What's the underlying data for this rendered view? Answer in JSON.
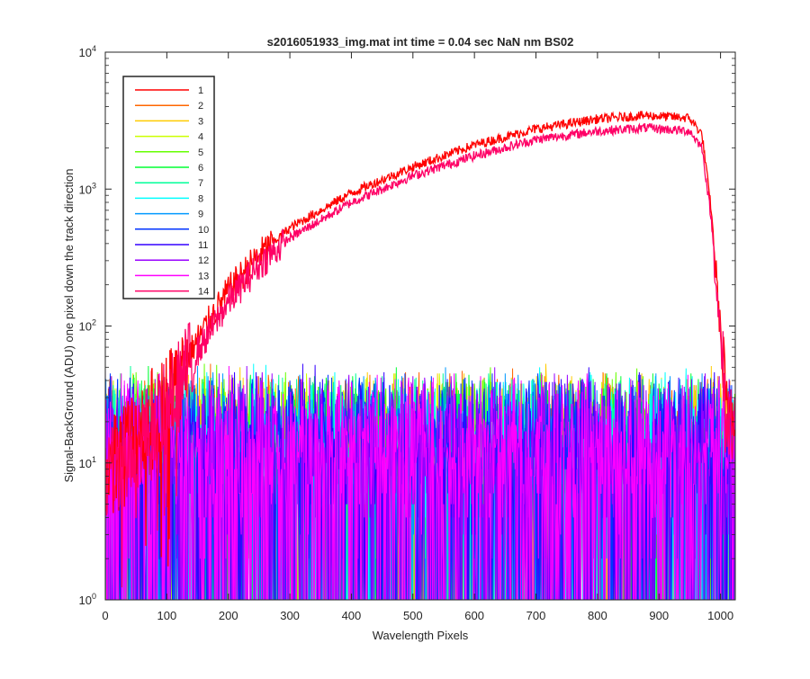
{
  "chart_data": {
    "type": "line",
    "title": "s2016051933_img.mat int time = 0.04 sec  NaN nm BS02",
    "xlabel": "Wavelength Pixels",
    "ylabel": "Signal-BackGround (ADU) one pixel down the track direction",
    "xlim": [
      0,
      1024
    ],
    "ylim": [
      1,
      10000
    ],
    "yscale": "log",
    "grid": false,
    "legend_position": "top-left",
    "x_ticks": [
      0,
      100,
      200,
      300,
      400,
      500,
      600,
      700,
      800,
      900,
      1000
    ],
    "y_ticks": [
      {
        "value": 1,
        "base": "10",
        "exp": "0"
      },
      {
        "value": 10,
        "base": "10",
        "exp": "1"
      },
      {
        "value": 100,
        "base": "10",
        "exp": "2"
      },
      {
        "value": 1000,
        "base": "10",
        "exp": "3"
      },
      {
        "value": 10000,
        "base": "10",
        "exp": "4"
      }
    ],
    "series": [
      {
        "name": "1",
        "color": "#ff0000",
        "kind": "signal",
        "values_at": [
          [
            0,
            10
          ],
          [
            50,
            17
          ],
          [
            100,
            30
          ],
          [
            150,
            80
          ],
          [
            200,
            180
          ],
          [
            250,
            330
          ],
          [
            300,
            520
          ],
          [
            400,
            940
          ],
          [
            500,
            1450
          ],
          [
            600,
            2100
          ],
          [
            700,
            2750
          ],
          [
            800,
            3250
          ],
          [
            880,
            3450
          ],
          [
            950,
            3300
          ],
          [
            970,
            2500
          ],
          [
            985,
            700
          ],
          [
            1000,
            90
          ],
          [
            1010,
            20
          ],
          [
            1023,
            35
          ]
        ]
      },
      {
        "name": "2",
        "color": "#ff6600",
        "kind": "noise"
      },
      {
        "name": "3",
        "color": "#ffcc00",
        "kind": "noise"
      },
      {
        "name": "4",
        "color": "#ccff00",
        "kind": "noise"
      },
      {
        "name": "5",
        "color": "#66ff00",
        "kind": "noise"
      },
      {
        "name": "6",
        "color": "#00ff33",
        "kind": "noise"
      },
      {
        "name": "7",
        "color": "#00ff99",
        "kind": "noise"
      },
      {
        "name": "8",
        "color": "#00ffff",
        "kind": "noise"
      },
      {
        "name": "9",
        "color": "#0099ff",
        "kind": "noise"
      },
      {
        "name": "10",
        "color": "#0033ff",
        "kind": "noise"
      },
      {
        "name": "11",
        "color": "#3300ff",
        "kind": "noise"
      },
      {
        "name": "12",
        "color": "#9900ff",
        "kind": "noise"
      },
      {
        "name": "13",
        "color": "#ff00ff",
        "kind": "noise"
      },
      {
        "name": "14",
        "color": "#ff0066",
        "kind": "signal",
        "values_at": [
          [
            0,
            8
          ],
          [
            50,
            14
          ],
          [
            100,
            25
          ],
          [
            150,
            65
          ],
          [
            200,
            150
          ],
          [
            250,
            280
          ],
          [
            300,
            440
          ],
          [
            400,
            800
          ],
          [
            500,
            1250
          ],
          [
            600,
            1750
          ],
          [
            700,
            2300
          ],
          [
            800,
            2650
          ],
          [
            880,
            2800
          ],
          [
            950,
            2650
          ],
          [
            970,
            2000
          ],
          [
            985,
            600
          ],
          [
            1000,
            80
          ],
          [
            1010,
            18
          ],
          [
            1023,
            25
          ]
        ]
      }
    ],
    "noise_level_range": [
      1,
      45
    ]
  }
}
